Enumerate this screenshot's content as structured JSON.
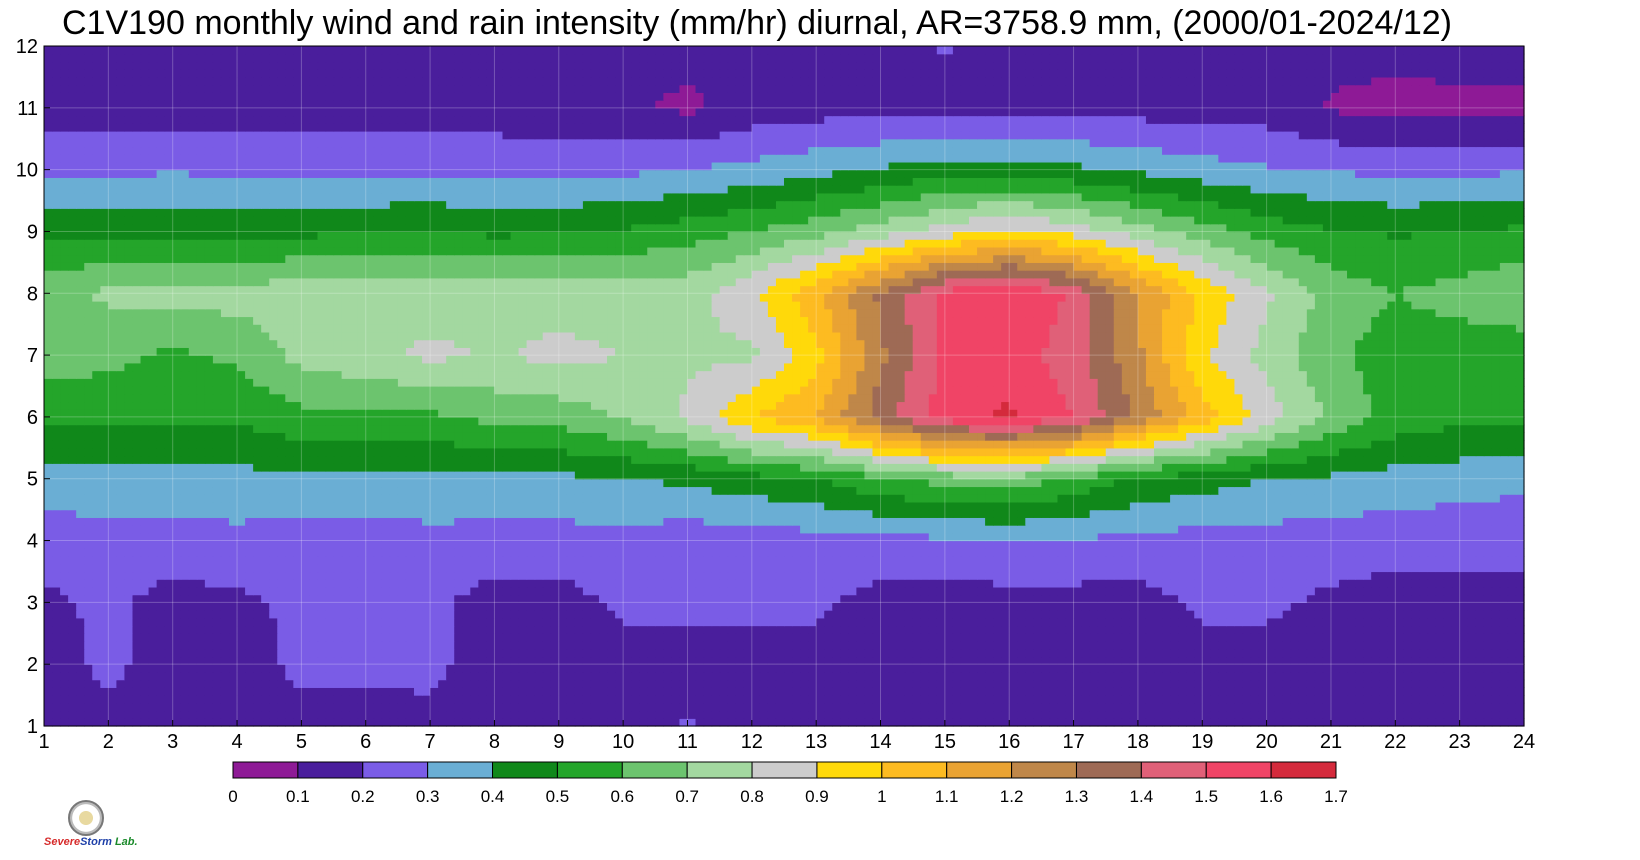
{
  "title": "C1V190 monthly wind and rain intensity (mm/hr) diurnal, AR=3758.9 mm, (2000/01-2024/12)",
  "logo": {
    "text_a": "Severe",
    "text_b": "Storm",
    "text_c": "Lab."
  },
  "chart_data": {
    "type": "heatmap",
    "title": "C1V190 monthly wind and rain intensity (mm/hr) diurnal, AR=3758.9 mm, (2000/01-2024/12)",
    "xlabel": "",
    "ylabel": "",
    "x": [
      1,
      2,
      3,
      4,
      5,
      6,
      7,
      8,
      9,
      10,
      11,
      12,
      13,
      14,
      15,
      16,
      17,
      18,
      19,
      20,
      21,
      22,
      23,
      24
    ],
    "y": [
      1,
      2,
      3,
      4,
      5,
      6,
      7,
      8,
      9,
      10,
      11,
      12
    ],
    "xlim": [
      1,
      24
    ],
    "ylim": [
      1,
      12
    ],
    "grid": true,
    "colorbar": {
      "ticks": [
        "0",
        "0.1",
        "0.2",
        "0.3",
        "0.4",
        "0.5",
        "0.6",
        "0.7",
        "0.8",
        "0.9",
        "1",
        "1.1",
        "1.2",
        "1.3",
        "1.4",
        "1.5",
        "1.6",
        "1.7"
      ],
      "colors": [
        "#8e1a96",
        "#4a1e9c",
        "#7a5ce6",
        "#6aaed4",
        "#10881a",
        "#24a52a",
        "#6cc46e",
        "#a3d8a0",
        "#cccccc",
        "#ffd90a",
        "#fdbb21",
        "#e9a333",
        "#bf8749",
        "#9e6a55",
        "#e06078",
        "#f04466",
        "#d42a3c"
      ]
    },
    "values": [
      [
        0.16,
        0.17,
        0.16,
        0.18,
        0.17,
        0.16,
        0.18,
        0.16,
        0.16,
        0.17,
        0.21,
        0.16,
        0.16,
        0.16,
        0.16,
        0.16,
        0.16,
        0.16,
        0.16,
        0.16,
        0.16,
        0.16,
        0.17,
        0.17
      ],
      [
        0.16,
        0.22,
        0.16,
        0.16,
        0.22,
        0.22,
        0.22,
        0.16,
        0.16,
        0.16,
        0.16,
        0.16,
        0.16,
        0.16,
        0.16,
        0.16,
        0.16,
        0.16,
        0.16,
        0.16,
        0.16,
        0.16,
        0.16,
        0.16
      ],
      [
        0.18,
        0.22,
        0.16,
        0.18,
        0.22,
        0.22,
        0.22,
        0.16,
        0.16,
        0.22,
        0.22,
        0.22,
        0.22,
        0.16,
        0.16,
        0.16,
        0.16,
        0.16,
        0.22,
        0.22,
        0.18,
        0.16,
        0.16,
        0.16
      ],
      [
        0.24,
        0.26,
        0.26,
        0.27,
        0.25,
        0.26,
        0.27,
        0.26,
        0.26,
        0.27,
        0.24,
        0.24,
        0.26,
        0.27,
        0.28,
        0.29,
        0.29,
        0.27,
        0.26,
        0.26,
        0.25,
        0.24,
        0.24,
        0.24
      ],
      [
        0.36,
        0.37,
        0.37,
        0.37,
        0.37,
        0.37,
        0.37,
        0.38,
        0.38,
        0.39,
        0.42,
        0.46,
        0.5,
        0.58,
        0.64,
        0.66,
        0.58,
        0.48,
        0.44,
        0.4,
        0.38,
        0.36,
        0.34,
        0.32
      ],
      [
        0.53,
        0.52,
        0.52,
        0.52,
        0.57,
        0.58,
        0.58,
        0.63,
        0.64,
        0.71,
        0.82,
        1.0,
        1.1,
        1.35,
        1.55,
        1.62,
        1.5,
        1.28,
        1.05,
        0.86,
        0.68,
        0.56,
        0.53,
        0.52
      ],
      [
        0.65,
        0.63,
        0.58,
        0.62,
        0.73,
        0.77,
        0.82,
        0.79,
        0.83,
        0.8,
        0.78,
        0.78,
        0.96,
        1.28,
        1.52,
        1.55,
        1.45,
        1.22,
        0.92,
        0.76,
        0.62,
        0.55,
        0.54,
        0.54
      ],
      [
        0.65,
        0.72,
        0.74,
        0.74,
        0.76,
        0.76,
        0.76,
        0.76,
        0.75,
        0.76,
        0.76,
        0.88,
        1.08,
        1.32,
        1.53,
        1.6,
        1.48,
        1.2,
        0.98,
        0.82,
        0.66,
        0.6,
        0.64,
        0.68
      ],
      [
        0.49,
        0.48,
        0.48,
        0.48,
        0.48,
        0.49,
        0.5,
        0.48,
        0.49,
        0.51,
        0.55,
        0.6,
        0.66,
        0.75,
        0.85,
        0.93,
        0.86,
        0.75,
        0.65,
        0.56,
        0.51,
        0.49,
        0.5,
        0.52
      ],
      [
        0.27,
        0.28,
        0.29,
        0.28,
        0.28,
        0.28,
        0.28,
        0.27,
        0.27,
        0.28,
        0.3,
        0.33,
        0.37,
        0.41,
        0.45,
        0.45,
        0.42,
        0.38,
        0.34,
        0.31,
        0.29,
        0.28,
        0.28,
        0.29
      ],
      [
        0.15,
        0.15,
        0.15,
        0.15,
        0.15,
        0.15,
        0.15,
        0.15,
        0.12,
        0.12,
        0.08,
        0.14,
        0.16,
        0.16,
        0.16,
        0.17,
        0.16,
        0.16,
        0.16,
        0.15,
        0.09,
        0.07,
        0.08,
        0.08
      ],
      [
        0.13,
        0.13,
        0.13,
        0.13,
        0.13,
        0.13,
        0.13,
        0.13,
        0.13,
        0.13,
        0.13,
        0.13,
        0.13,
        0.13,
        0.21,
        0.13,
        0.13,
        0.13,
        0.13,
        0.13,
        0.13,
        0.13,
        0.13,
        0.13
      ]
    ]
  }
}
